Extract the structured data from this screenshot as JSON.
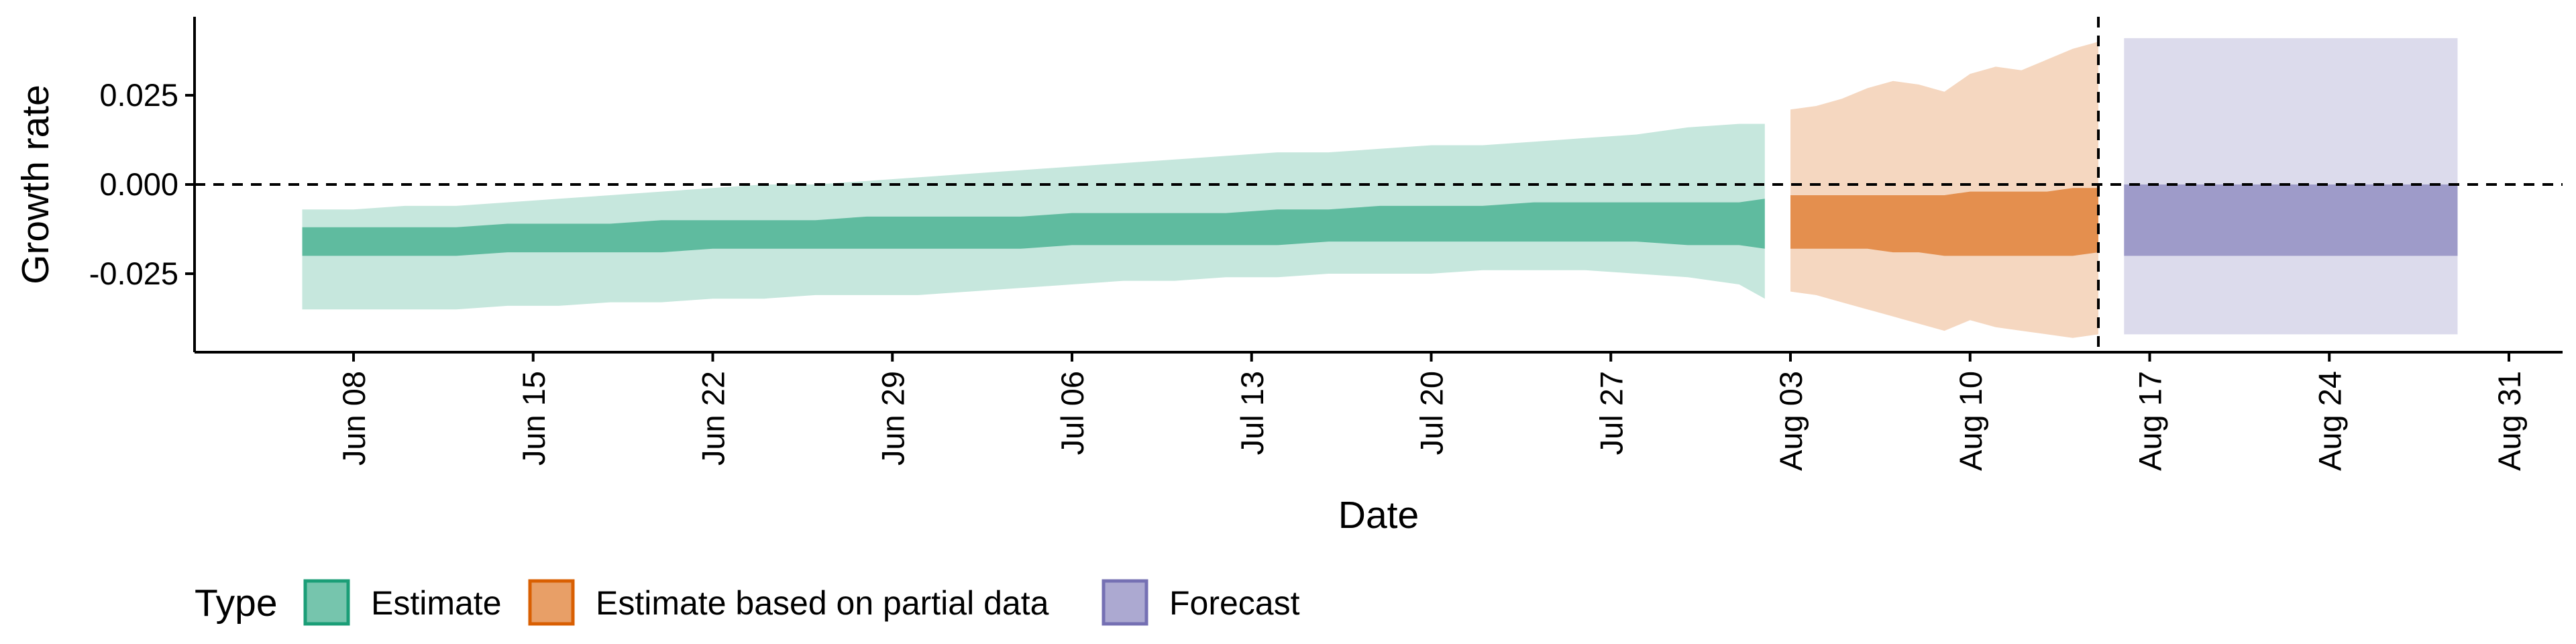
{
  "chart_data": {
    "type": "area",
    "title": "",
    "xlabel": "Date",
    "ylabel": "Growth rate",
    "grid": false,
    "legend_position": "bottom-left",
    "legend_title": "Type",
    "xlim": [
      "2020-06-01",
      "2020-09-01"
    ],
    "ylim": [
      -0.0445,
      0.0445
    ],
    "x_ticks": [
      {
        "date": "2020-06-08",
        "label": "Jun 08"
      },
      {
        "date": "2020-06-15",
        "label": "Jun 15"
      },
      {
        "date": "2020-06-22",
        "label": "Jun 22"
      },
      {
        "date": "2020-06-29",
        "label": "Jun 29"
      },
      {
        "date": "2020-07-06",
        "label": "Jul 06"
      },
      {
        "date": "2020-07-13",
        "label": "Jul 13"
      },
      {
        "date": "2020-07-20",
        "label": "Jul 20"
      },
      {
        "date": "2020-07-27",
        "label": "Jul 27"
      },
      {
        "date": "2020-08-03",
        "label": "Aug 03"
      },
      {
        "date": "2020-08-10",
        "label": "Aug 10"
      },
      {
        "date": "2020-08-17",
        "label": "Aug 17"
      },
      {
        "date": "2020-08-24",
        "label": "Aug 24"
      },
      {
        "date": "2020-08-31",
        "label": "Aug 31"
      }
    ],
    "y_ticks": [
      {
        "value": 0.025,
        "label": "0.025"
      },
      {
        "value": 0.0,
        "label": "0.000"
      },
      {
        "value": -0.025,
        "label": "-0.025"
      }
    ],
    "reference_lines": [
      {
        "axis": "y",
        "value": 0.0,
        "style": "dashed"
      },
      {
        "axis": "x",
        "value": "2020-08-15",
        "style": "dashed"
      }
    ],
    "series": [
      {
        "name": "Estimate",
        "color": "#1b9e77",
        "x": [
          "2020-06-06",
          "2020-06-08",
          "2020-06-10",
          "2020-06-12",
          "2020-06-14",
          "2020-06-16",
          "2020-06-18",
          "2020-06-20",
          "2020-06-22",
          "2020-06-24",
          "2020-06-26",
          "2020-06-28",
          "2020-06-30",
          "2020-07-02",
          "2020-07-04",
          "2020-07-06",
          "2020-07-08",
          "2020-07-10",
          "2020-07-12",
          "2020-07-14",
          "2020-07-16",
          "2020-07-18",
          "2020-07-20",
          "2020-07-22",
          "2020-07-24",
          "2020-07-26",
          "2020-07-28",
          "2020-07-30",
          "2020-08-01",
          "2020-08-02"
        ],
        "lower_90": [
          -0.035,
          -0.035,
          -0.035,
          -0.035,
          -0.034,
          -0.034,
          -0.033,
          -0.033,
          -0.032,
          -0.032,
          -0.031,
          -0.031,
          -0.031,
          -0.03,
          -0.029,
          -0.028,
          -0.027,
          -0.027,
          -0.026,
          -0.026,
          -0.025,
          -0.025,
          -0.025,
          -0.024,
          -0.024,
          -0.024,
          -0.025,
          -0.026,
          -0.028,
          -0.032
        ],
        "lower_50": [
          -0.02,
          -0.02,
          -0.02,
          -0.02,
          -0.019,
          -0.019,
          -0.019,
          -0.019,
          -0.018,
          -0.018,
          -0.018,
          -0.018,
          -0.018,
          -0.018,
          -0.018,
          -0.017,
          -0.017,
          -0.017,
          -0.017,
          -0.017,
          -0.016,
          -0.016,
          -0.016,
          -0.016,
          -0.016,
          -0.016,
          -0.016,
          -0.017,
          -0.017,
          -0.018
        ],
        "upper_50": [
          -0.012,
          -0.012,
          -0.012,
          -0.012,
          -0.011,
          -0.011,
          -0.011,
          -0.01,
          -0.01,
          -0.01,
          -0.01,
          -0.009,
          -0.009,
          -0.009,
          -0.009,
          -0.008,
          -0.008,
          -0.008,
          -0.008,
          -0.007,
          -0.007,
          -0.006,
          -0.006,
          -0.006,
          -0.005,
          -0.005,
          -0.005,
          -0.005,
          -0.005,
          -0.004
        ],
        "upper_90": [
          -0.007,
          -0.007,
          -0.006,
          -0.006,
          -0.005,
          -0.004,
          -0.003,
          -0.002,
          -0.001,
          0.0,
          0.0,
          0.001,
          0.002,
          0.003,
          0.004,
          0.005,
          0.006,
          0.007,
          0.008,
          0.009,
          0.009,
          0.01,
          0.011,
          0.011,
          0.012,
          0.013,
          0.014,
          0.016,
          0.017,
          0.017
        ]
      },
      {
        "name": "Estimate based on partial data",
        "color": "#d95f02",
        "x": [
          "2020-08-03",
          "2020-08-04",
          "2020-08-05",
          "2020-08-06",
          "2020-08-07",
          "2020-08-08",
          "2020-08-09",
          "2020-08-10",
          "2020-08-11",
          "2020-08-12",
          "2020-08-13",
          "2020-08-14",
          "2020-08-15"
        ],
        "lower_90": [
          -0.03,
          -0.031,
          -0.033,
          -0.035,
          -0.037,
          -0.039,
          -0.041,
          -0.038,
          -0.04,
          -0.041,
          -0.042,
          -0.043,
          -0.042
        ],
        "lower_50": [
          -0.018,
          -0.018,
          -0.018,
          -0.018,
          -0.019,
          -0.019,
          -0.02,
          -0.02,
          -0.02,
          -0.02,
          -0.02,
          -0.02,
          -0.019
        ],
        "upper_50": [
          -0.003,
          -0.003,
          -0.003,
          -0.003,
          -0.003,
          -0.003,
          -0.003,
          -0.002,
          -0.002,
          -0.002,
          -0.002,
          -0.001,
          -0.001
        ],
        "upper_90": [
          0.021,
          0.022,
          0.024,
          0.027,
          0.029,
          0.028,
          0.026,
          0.031,
          0.033,
          0.032,
          0.035,
          0.038,
          0.04
        ]
      },
      {
        "name": "Forecast",
        "color": "#7570b3",
        "x": [
          "2020-08-16",
          "2020-08-29"
        ],
        "lower_90": [
          -0.042,
          -0.042
        ],
        "lower_50": [
          -0.02,
          -0.02
        ],
        "upper_50": [
          0.0,
          0.0
        ],
        "upper_90": [
          0.041,
          0.041
        ]
      }
    ]
  }
}
